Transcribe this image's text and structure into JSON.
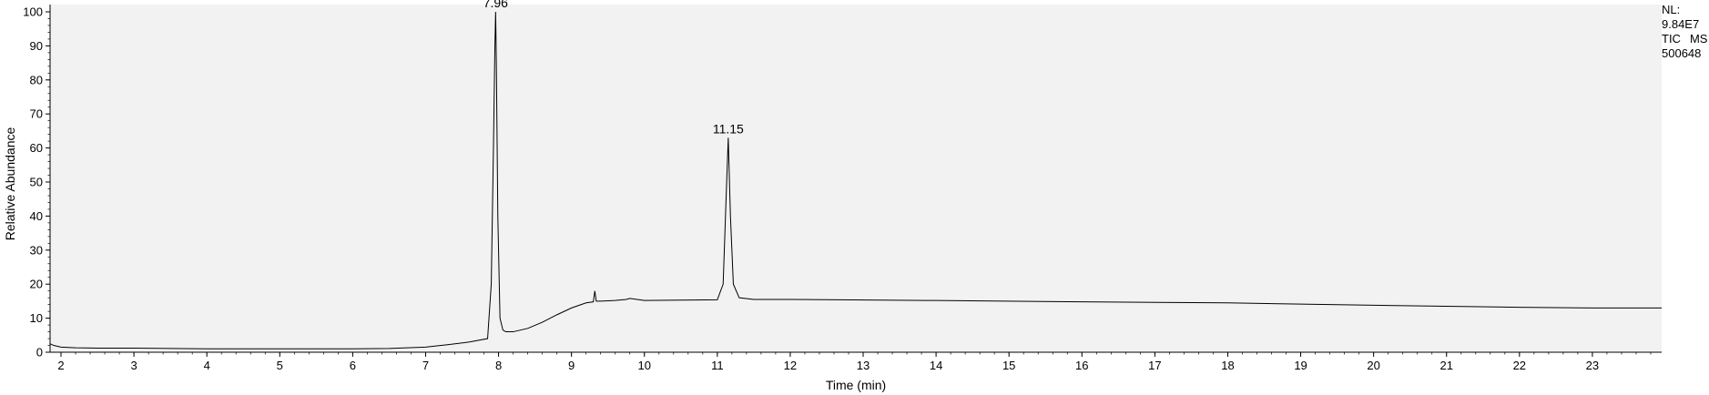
{
  "chart_data": {
    "type": "line",
    "xlabel": "Time (min)",
    "ylabel": "Relative Abundance",
    "xlim": [
      1.85,
      23.95
    ],
    "ylim": [
      0,
      100
    ],
    "xticks": [
      2,
      3,
      4,
      5,
      6,
      7,
      8,
      9,
      10,
      11,
      12,
      13,
      14,
      15,
      16,
      17,
      18,
      19,
      20,
      21,
      22,
      23
    ],
    "yticks": [
      0,
      10,
      20,
      30,
      40,
      50,
      60,
      70,
      80,
      90,
      100
    ],
    "grid": false,
    "peaks": [
      {
        "label": "7.96",
        "x": 7.96,
        "y": 100
      },
      {
        "label": "11.15",
        "x": 11.15,
        "y": 63
      }
    ],
    "series": [
      {
        "x": [
          1.85,
          1.9,
          2.0,
          2.2,
          2.5,
          3.0,
          4.0,
          5.0,
          6.0,
          6.5,
          7.0,
          7.3,
          7.6,
          7.85,
          7.9,
          7.93,
          7.95,
          7.96,
          7.97,
          7.99,
          8.02,
          8.06,
          8.1,
          8.2,
          8.4,
          8.6,
          8.8,
          9.0,
          9.2,
          9.3,
          9.32,
          9.34,
          9.4,
          9.6,
          9.75,
          9.8,
          10.0,
          10.5,
          11.0,
          11.08,
          11.12,
          11.15,
          11.18,
          11.22,
          11.3,
          11.5,
          12.0,
          14.0,
          16.0,
          18.0,
          20.0,
          22.0,
          23.0,
          23.95
        ],
        "y": [
          2.5,
          2.0,
          1.5,
          1.3,
          1.2,
          1.2,
          1.0,
          1.0,
          1.0,
          1.1,
          1.5,
          2.2,
          3.0,
          4.0,
          20,
          60,
          90,
          100,
          85,
          40,
          10,
          6.5,
          6.0,
          6.0,
          7.0,
          8.8,
          11.0,
          13.0,
          14.5,
          14.8,
          18.0,
          15.0,
          15.0,
          15.2,
          15.5,
          15.8,
          15.2,
          15.3,
          15.4,
          20,
          45,
          63,
          40,
          20,
          16.0,
          15.5,
          15.5,
          15.2,
          14.8,
          14.5,
          13.8,
          13.2,
          13.0,
          13.0
        ]
      }
    ]
  },
  "info": {
    "nl_label": "NL:",
    "nl_value": "9.84E7",
    "tic": "TIC",
    "ms": "MS",
    "sample": "500648"
  }
}
